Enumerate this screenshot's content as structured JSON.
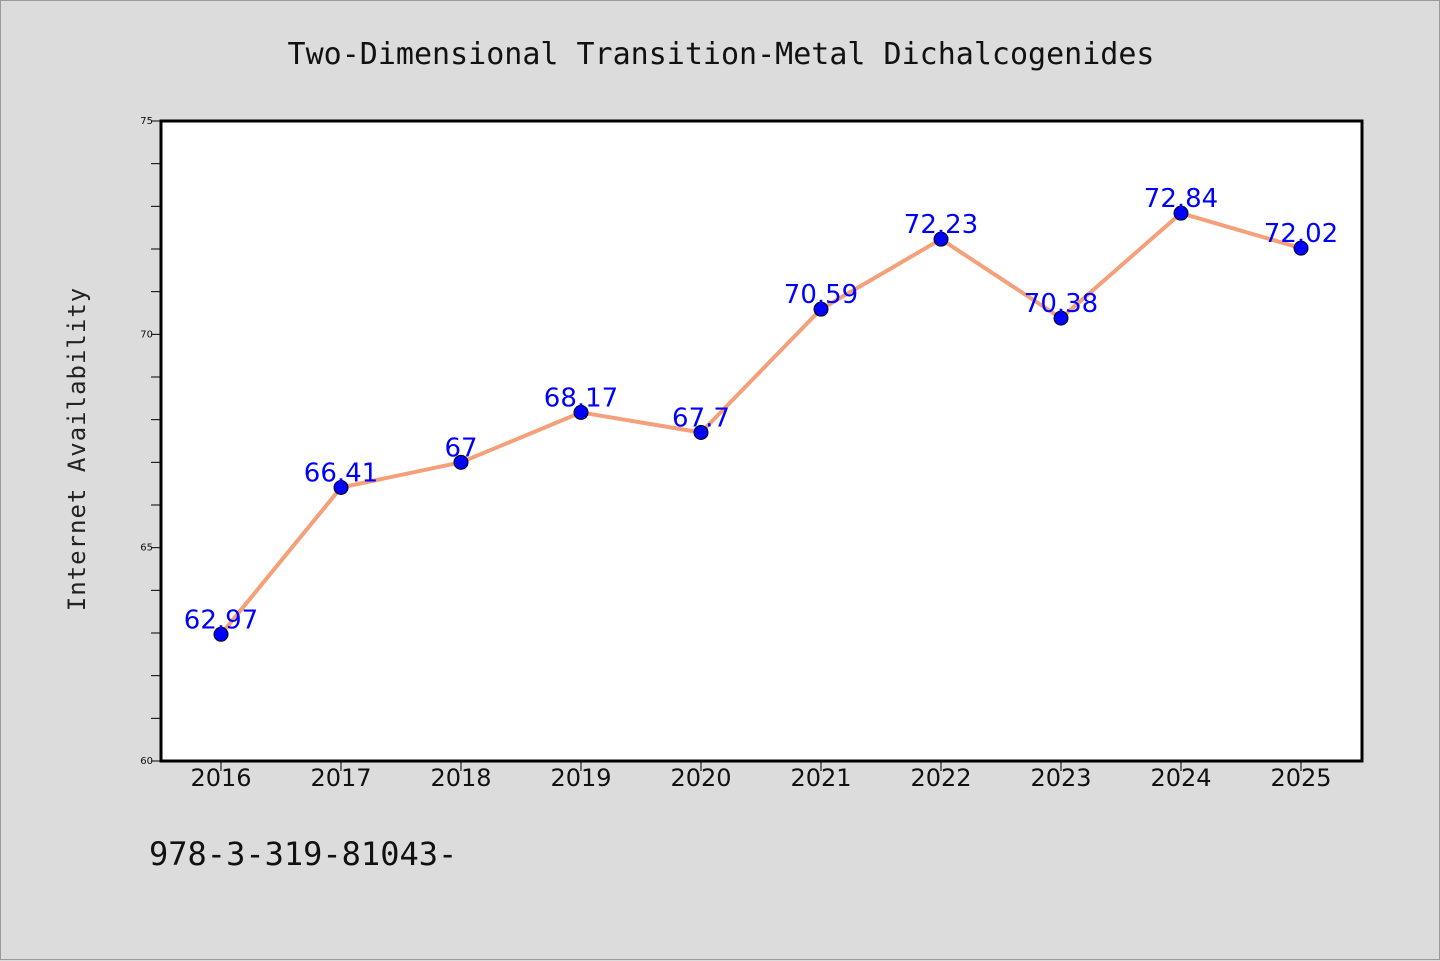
{
  "chart_data": {
    "type": "line",
    "title": "Two-Dimensional Transition-Metal Dichalcogenides",
    "xlabel": "",
    "ylabel": "Internet Availability",
    "categories": [
      "2016",
      "2017",
      "2018",
      "2019",
      "2020",
      "2021",
      "2022",
      "2023",
      "2024",
      "2025"
    ],
    "series": [
      {
        "values": [
          62.97,
          66.41,
          67,
          68.17,
          67.7,
          70.59,
          72.23,
          70.38,
          72.84,
          72.02
        ],
        "labels": [
          "62.97",
          "66.41",
          "67",
          "68.17",
          "67.7",
          "70.59",
          "72.23",
          "70.38",
          "72.84",
          "72.02"
        ]
      }
    ],
    "ylim": [
      60,
      75
    ],
    "yticks": [
      "60",
      "65",
      "70",
      "75"
    ],
    "y_minor_step": 1,
    "grid": false,
    "colors": {
      "line": "#f4a07a",
      "marker": "#0000ff",
      "data_label": "#0000ff",
      "plot_background": "#ffffff",
      "figure_background": "#dcdcdc"
    }
  },
  "footer": {
    "text": "978-3-319-81043-"
  }
}
